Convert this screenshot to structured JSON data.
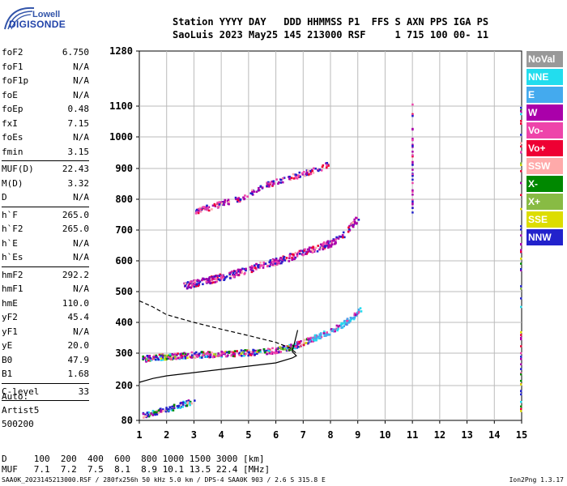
{
  "logo": {
    "top": "Lowell",
    "bottom": "DIGISONDE"
  },
  "header": {
    "line1": "Station YYYY DAY   DDD HHMMSS P1  FFS S AXN PPS IGA PS",
    "line2": "SaoLuis 2023 May25 145 213000 RSF     1 715 100 00- 11"
  },
  "params": [
    {
      "name": "foF2",
      "value": "6.750"
    },
    {
      "name": "foF1",
      "value": "N/A"
    },
    {
      "name": "foF1p",
      "value": "N/A"
    },
    {
      "name": "foE",
      "value": "N/A"
    },
    {
      "name": "foEp",
      "value": "0.48"
    },
    {
      "name": "fxI",
      "value": "7.15"
    },
    {
      "name": "foEs",
      "value": "N/A"
    },
    {
      "name": "fmin",
      "value": "3.15"
    },
    {
      "sep": true
    },
    {
      "name": "MUF(D)",
      "value": "22.43"
    },
    {
      "name": "M(D)",
      "value": "3.32"
    },
    {
      "name": "D",
      "value": "N/A"
    },
    {
      "sep": true
    },
    {
      "name": "h`F",
      "value": "265.0"
    },
    {
      "name": "h`F2",
      "value": "265.0"
    },
    {
      "name": "h`E",
      "value": "N/A"
    },
    {
      "name": "h`Es",
      "value": "N/A"
    },
    {
      "sep": true
    },
    {
      "name": "hmF2",
      "value": "292.2"
    },
    {
      "name": "hmF1",
      "value": "N/A"
    },
    {
      "name": "hmE",
      "value": "110.0"
    },
    {
      "name": "yF2",
      "value": "45.4"
    },
    {
      "name": "yF1",
      "value": "N/A"
    },
    {
      "name": "yE",
      "value": "20.0"
    },
    {
      "name": "B0",
      "value": "47.9"
    },
    {
      "name": "B1",
      "value": "1.68"
    },
    {
      "sep": true
    },
    {
      "name": "C-level",
      "value": "33"
    },
    {
      "sep": true
    }
  ],
  "auto": {
    "line1": "Auto:",
    "line2": "Artist5",
    "line3": "500200"
  },
  "legend": [
    {
      "label": "NoVal",
      "color": "#999999"
    },
    {
      "label": "NNE",
      "color": "#22ddee"
    },
    {
      "label": "E",
      "color": "#44aaee"
    },
    {
      "label": "W",
      "color": "#aa00aa"
    },
    {
      "label": "Vo-",
      "color": "#ee44aa"
    },
    {
      "label": "Vo+",
      "color": "#ee0033"
    },
    {
      "label": "SSW",
      "color": "#ffaaaa"
    },
    {
      "label": "X-",
      "color": "#008800"
    },
    {
      "label": "X+",
      "color": "#88bb44"
    },
    {
      "label": "SSE",
      "color": "#dddd00"
    },
    {
      "label": "NNW",
      "color": "#2222cc"
    }
  ],
  "chart_data": {
    "type": "scatter",
    "title": "",
    "xlabel": "",
    "ylabel": "",
    "xlim": [
      1,
      15
    ],
    "ylim": [
      80,
      1280
    ],
    "xticks": [
      1,
      2,
      3,
      4,
      5,
      6,
      7,
      8,
      9,
      10,
      11,
      12,
      13,
      14,
      15
    ],
    "yticks": [
      80,
      200,
      300,
      400,
      500,
      600,
      700,
      800,
      900,
      1000,
      1100,
      1280
    ],
    "y_scale": "nonlinear",
    "grid": true,
    "legend_position": "right",
    "traces": {
      "F_1hop": [
        [
          1.1,
          285
        ],
        [
          2,
          292
        ],
        [
          3,
          298
        ],
        [
          4,
          300
        ],
        [
          5,
          305
        ],
        [
          5.5,
          308
        ],
        [
          6,
          312
        ],
        [
          6.5,
          322
        ],
        [
          6.8,
          332
        ],
        [
          7.2,
          345
        ],
        [
          7.6,
          360
        ],
        [
          8,
          375
        ],
        [
          8.4,
          395
        ],
        [
          8.8,
          420
        ],
        [
          9.0,
          440
        ],
        [
          9.1,
          445
        ]
      ],
      "F_2hop": [
        [
          2.6,
          520
        ],
        [
          3,
          530
        ],
        [
          4,
          550
        ],
        [
          5,
          575
        ],
        [
          5.5,
          590
        ],
        [
          6,
          600
        ],
        [
          6.5,
          615
        ],
        [
          7,
          630
        ],
        [
          7.5,
          645
        ],
        [
          8,
          660
        ],
        [
          8.5,
          690
        ],
        [
          9,
          745
        ]
      ],
      "F_3hop": [
        [
          3.0,
          765
        ],
        [
          3.5,
          775
        ],
        [
          4,
          790
        ],
        [
          4.5,
          800
        ],
        [
          5,
          820
        ],
        [
          5.5,
          845
        ],
        [
          6,
          860
        ],
        [
          6.5,
          875
        ],
        [
          7,
          885
        ],
        [
          7.5,
          900
        ],
        [
          7.9,
          915
        ]
      ],
      "Es_low": [
        [
          1.1,
          100
        ],
        [
          1.5,
          110
        ],
        [
          2,
          120
        ],
        [
          2.3,
          130
        ],
        [
          2.6,
          140
        ],
        [
          3.0,
          150
        ]
      ]
    },
    "profile_solid": [
      [
        1,
        210
      ],
      [
        1.5,
        222
      ],
      [
        2,
        230
      ],
      [
        3,
        240
      ],
      [
        4,
        250
      ],
      [
        5,
        260
      ],
      [
        6,
        270
      ],
      [
        6.6,
        285
      ],
      [
        6.75,
        292
      ],
      [
        6.6,
        305
      ],
      [
        6.7,
        340
      ],
      [
        6.8,
        375
      ]
    ],
    "profile_dashed": [
      [
        1,
        470
      ],
      [
        1.5,
        450
      ],
      [
        2,
        425
      ],
      [
        3,
        400
      ],
      [
        4,
        378
      ],
      [
        5,
        357
      ],
      [
        6,
        335
      ],
      [
        6.5,
        318
      ],
      [
        6.75,
        300
      ]
    ]
  },
  "bottom_table": {
    "row1": "D     100  200  400  600  800 1000 1500 3000 [km]",
    "row2": "MUF   7.1  7.2  7.5  8.1  8.9 10.1 13.5 22.4 [MHz]"
  },
  "footer": {
    "text": "SAA0K_2023145213000.RSF / 280fx256h 50 kHz 5.0 km / DPS-4 SAA0K 903 / 2.6 S 315.8 E",
    "version": "Ion2Png 1.3.17"
  }
}
